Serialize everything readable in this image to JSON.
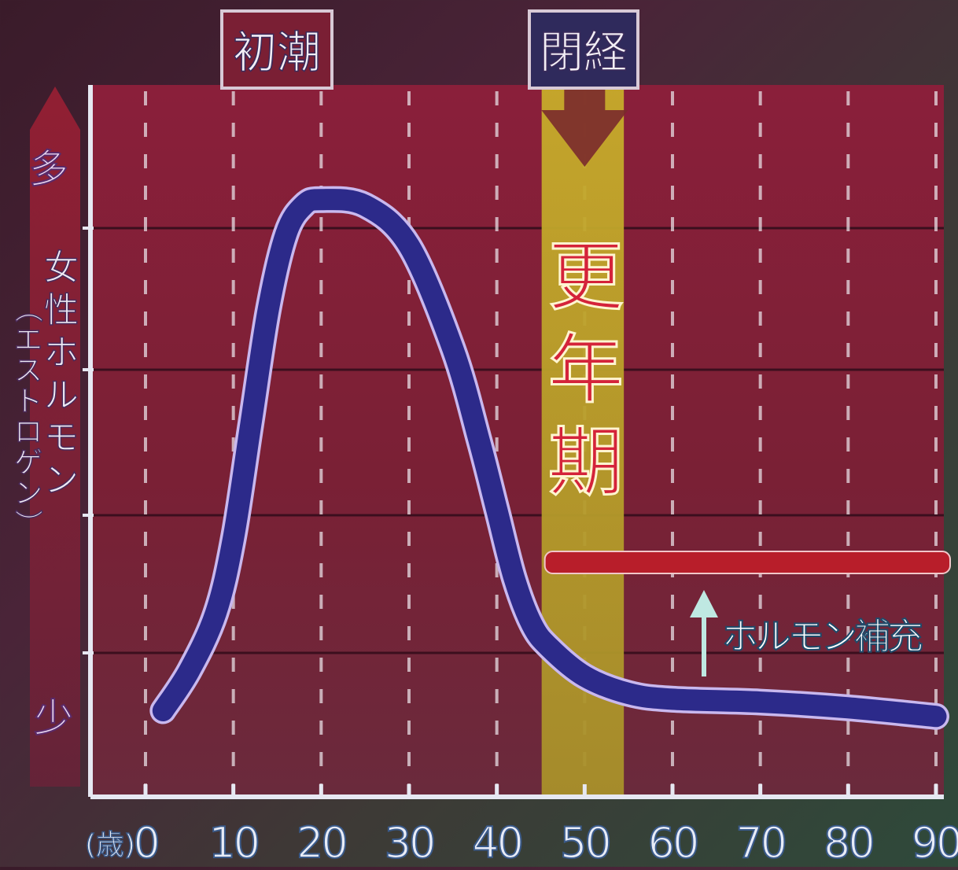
{
  "chart_data": {
    "type": "line",
    "x": [
      2,
      5,
      8,
      10,
      12,
      14,
      16,
      18,
      20,
      25,
      30,
      35,
      38,
      40,
      42,
      44,
      46,
      50,
      55,
      60,
      70,
      80,
      90
    ],
    "series": [
      {
        "values": [
          0.05,
          0.12,
          0.22,
          0.35,
          0.55,
          0.75,
          0.88,
          0.93,
          0.94,
          0.93,
          0.86,
          0.68,
          0.52,
          0.4,
          0.28,
          0.2,
          0.16,
          0.11,
          0.08,
          0.07,
          0.065,
          0.055,
          0.04
        ]
      }
    ],
    "xlim": [
      -8,
      90
    ],
    "ylim": [
      0,
      1
    ],
    "x_ticks": [
      "0",
      "10",
      "20",
      "30",
      "40",
      "50",
      "60",
      "70",
      "80",
      "90"
    ],
    "x_unit_label": "(歳)",
    "y_axis_label": "女性ホルモン（エストロゲン）",
    "y_top_label": "多",
    "y_bottom_label": "少",
    "band_label": "更年期",
    "band_range": [
      46,
      55
    ],
    "event_labels": [
      {
        "text": "初潮",
        "x": 12
      },
      {
        "text": "閉経",
        "x": 50
      }
    ],
    "therapy_level": 0.41,
    "therapy_range": [
      46,
      91
    ],
    "therapy_label": "ホルモン補充",
    "grid": true,
    "colors": {
      "plot_bg": "#7a2035",
      "curve": "#2c2a8a",
      "curve_outline": "#c9b8ee",
      "band": "#c9a52a",
      "therapy_line": "#b81e2a",
      "arrow": "#7a2a2c",
      "text": "#e8ecf7"
    }
  }
}
